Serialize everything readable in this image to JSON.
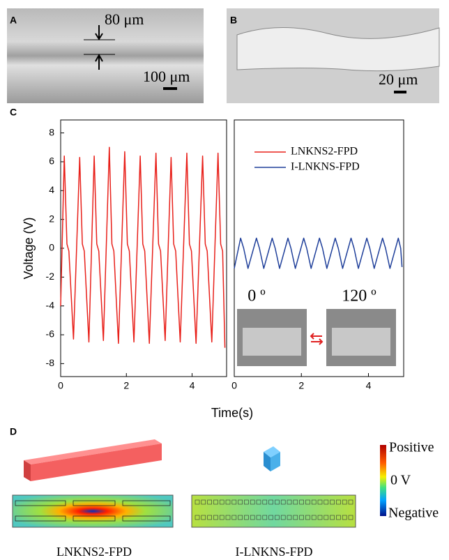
{
  "panels": {
    "a": "A",
    "b": "B",
    "c": "C",
    "d": "D"
  },
  "panel_a": {
    "thickness": "80 μm",
    "scale_bar": "100 μm"
  },
  "panel_b": {
    "scale_bar": "20 μm"
  },
  "chart_data": {
    "type": "line",
    "xlabel": "Time(s)",
    "ylabel": "Voltage (V)",
    "xlim": [
      0,
      5.05
    ],
    "xticks": [
      0,
      2,
      4
    ],
    "ylim": [
      -8.9,
      8.9
    ],
    "yticks": [
      -8,
      -6,
      -4,
      -2,
      0,
      2,
      4,
      6,
      8
    ],
    "annotations": [
      "0 º",
      "120 º"
    ],
    "series": [
      {
        "name": "LNKNS2-FPD",
        "color": "#e8201a",
        "panel": 0,
        "x": [
          0,
          0.11,
          0.19,
          0.25,
          0.39,
          0.58,
          0.66,
          0.72,
          0.86,
          1.02,
          1.1,
          1.16,
          1.3,
          1.48,
          1.56,
          1.62,
          1.76,
          1.95,
          2.03,
          2.09,
          2.23,
          2.42,
          2.5,
          2.56,
          2.7,
          2.9,
          2.98,
          3.04,
          3.18,
          3.36,
          3.44,
          3.5,
          3.64,
          3.84,
          3.92,
          3.98,
          4.12,
          4.32,
          4.4,
          4.46,
          4.6,
          4.79,
          4.87,
          4.93,
          5.0
        ],
        "values": [
          -4.0,
          6.4,
          0.3,
          -0.2,
          -6.3,
          6.3,
          0.3,
          -0.2,
          -6.5,
          6.4,
          0.3,
          -0.2,
          -6.4,
          7.0,
          0.3,
          -0.2,
          -6.6,
          6.7,
          0.3,
          -0.2,
          -6.5,
          6.4,
          0.3,
          -0.2,
          -6.6,
          6.6,
          0.3,
          -0.2,
          -6.4,
          6.3,
          0.3,
          -0.2,
          -6.5,
          6.6,
          0.3,
          -0.2,
          -6.6,
          6.4,
          0.3,
          -0.2,
          -6.5,
          6.6,
          0.3,
          -0.2,
          -6.9
        ]
      },
      {
        "name": "I-LNKNS-FPD",
        "color": "#1f3f9a",
        "panel": 1,
        "x": [
          0,
          0.19,
          0.28,
          0.41,
          0.66,
          0.75,
          0.88,
          1.13,
          1.22,
          1.35,
          1.6,
          1.69,
          1.82,
          2.07,
          2.16,
          2.29,
          2.54,
          2.63,
          2.76,
          3.01,
          3.1,
          3.23,
          3.48,
          3.57,
          3.7,
          3.95,
          4.04,
          4.17,
          4.42,
          4.51,
          4.64,
          4.89,
          4.96,
          5.0
        ],
        "values": [
          -1.4,
          0.7,
          0,
          -1.4,
          0.7,
          0,
          -1.4,
          0.7,
          0,
          -1.4,
          0.7,
          0,
          -1.4,
          0.7,
          0,
          -1.4,
          0.7,
          0,
          -1.4,
          0.7,
          0,
          -1.4,
          0.7,
          0,
          -1.4,
          0.7,
          0,
          -1.4,
          0.7,
          0,
          -1.4,
          0.7,
          0,
          -1.3
        ]
      }
    ]
  },
  "panel_d": {
    "colorbar": [
      "Positive",
      "0 V",
      "Negative"
    ],
    "captions": [
      "LNKNS2-FPD",
      "I-LNKNS-FPD"
    ]
  }
}
